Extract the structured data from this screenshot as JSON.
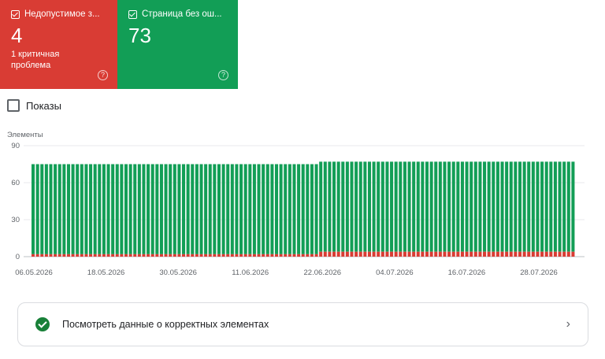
{
  "cards": [
    {
      "title": "Недопустимое з...",
      "value": "4",
      "sub_line1": "1 критичная",
      "sub_line2": "проблема",
      "help": "?",
      "color": "#d93c34"
    },
    {
      "title": "Страница без ош...",
      "value": "73",
      "help": "?",
      "color": "#129e56"
    }
  ],
  "impressions_label": "Показы",
  "chart_data": {
    "type": "bar",
    "stacked": true,
    "ylabel": "Элементы",
    "ylim": [
      0,
      90
    ],
    "yticks": [
      0,
      30,
      60,
      90
    ],
    "xtick_labels": [
      "06.05.2026",
      "18.05.2026",
      "30.05.2026",
      "11.06.2026",
      "22.06.2026",
      "04.07.2026",
      "16.07.2026",
      "28.07.2026"
    ],
    "grid": true,
    "series": [
      {
        "color": "#d93c34",
        "segments": [
          {
            "count": 65,
            "value": 2
          },
          {
            "count": 58,
            "value": 4
          }
        ]
      },
      {
        "color": "#129e56",
        "segments": [
          {
            "count": 65,
            "value": 73
          },
          {
            "count": 58,
            "value": 73
          }
        ]
      }
    ]
  },
  "panel": {
    "label": "Посмотреть данные о корректных элементах",
    "chevron": "›",
    "icon": "check-circle-icon"
  }
}
